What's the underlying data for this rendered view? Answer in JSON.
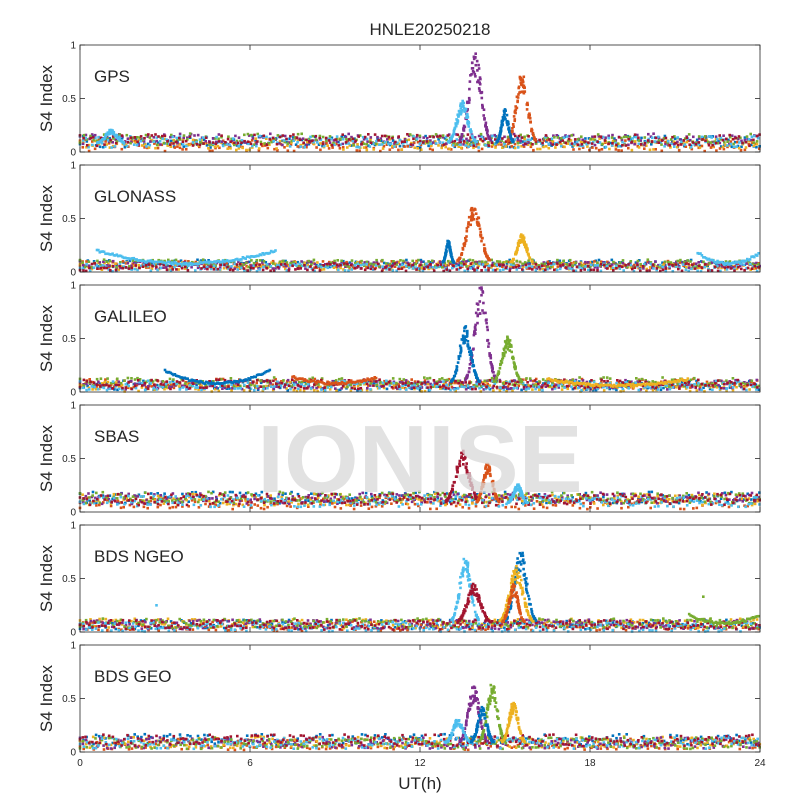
{
  "figure": {
    "title": "HNLE20250218",
    "watermark": "IONISE",
    "xlabel": "UT(h)",
    "ylabel": "S4 Index"
  },
  "series_colors": [
    "#0072BD",
    "#D95319",
    "#EDB120",
    "#7E2F8E",
    "#77AC30",
    "#4DBEEE",
    "#A2142F"
  ],
  "chart_data": [
    {
      "type": "scatter",
      "panel": "GPS",
      "label": "GPS",
      "xlim": [
        0,
        24
      ],
      "ylim": [
        0,
        1
      ],
      "xticks": [
        0,
        6,
        12,
        18,
        24
      ],
      "yticks": [
        0,
        0.5,
        1
      ],
      "xtick_labels": [
        "0",
        "6",
        "12",
        "18",
        "24"
      ],
      "ytick_labels": [
        "0",
        "0.5",
        "1"
      ],
      "baseline": [
        0.03,
        0.15
      ],
      "bumps": [
        {
          "x0": 13.4,
          "x1": 14.5,
          "peak": 0.95,
          "color": 3
        },
        {
          "x0": 13.0,
          "x1": 14.0,
          "peak": 0.48,
          "color": 5
        },
        {
          "x0": 15.1,
          "x1": 16.1,
          "peak": 0.76,
          "color": 1
        },
        {
          "x0": 14.7,
          "x1": 15.3,
          "peak": 0.4,
          "color": 0
        },
        {
          "x0": 0.6,
          "x1": 1.6,
          "peak": 0.21,
          "color": 5
        }
      ],
      "arcs": [],
      "outliers": []
    },
    {
      "type": "scatter",
      "panel": "GLONASS",
      "label": "GLONASS",
      "xlim": [
        0,
        24
      ],
      "ylim": [
        0,
        1
      ],
      "xticks": [
        0,
        6,
        12,
        18,
        24
      ],
      "yticks": [
        0,
        0.5,
        1
      ],
      "xtick_labels": [
        "0",
        "6",
        "12",
        "18",
        "24"
      ],
      "ytick_labels": [
        "0",
        "0.5",
        "1"
      ],
      "baseline": [
        0.02,
        0.1
      ],
      "bumps": [
        {
          "x0": 13.3,
          "x1": 14.5,
          "peak": 0.64,
          "color": 1
        },
        {
          "x0": 15.2,
          "x1": 16.0,
          "peak": 0.36,
          "color": 2
        },
        {
          "x0": 12.8,
          "x1": 13.2,
          "peak": 0.3,
          "color": 0
        }
      ],
      "arcs": [
        {
          "x0": 0.6,
          "x1": 6.9,
          "end": 0.2,
          "low": 0.08,
          "color": 5
        },
        {
          "x0": 21.8,
          "x1": 24.0,
          "end": 0.18,
          "low": 0.08,
          "color": 5
        }
      ],
      "outliers": []
    },
    {
      "type": "scatter",
      "panel": "GALILEO",
      "label": "GALILEO",
      "xlim": [
        0,
        24
      ],
      "ylim": [
        0,
        1
      ],
      "xticks": [
        0,
        6,
        12,
        18,
        24
      ],
      "yticks": [
        0,
        0.5,
        1
      ],
      "xtick_labels": [
        "0",
        "6",
        "12",
        "18",
        "24"
      ],
      "ytick_labels": [
        "0",
        "0.5",
        "1"
      ],
      "baseline": [
        0.02,
        0.12
      ],
      "bumps": [
        {
          "x0": 13.6,
          "x1": 14.7,
          "peak": 1.0,
          "color": 3
        },
        {
          "x0": 13.1,
          "x1": 14.1,
          "peak": 0.62,
          "color": 0
        },
        {
          "x0": 14.6,
          "x1": 15.6,
          "peak": 0.52,
          "color": 4
        }
      ],
      "arcs": [
        {
          "x0": 3.0,
          "x1": 6.7,
          "end": 0.2,
          "low": 0.08,
          "color": 0
        },
        {
          "x0": 7.5,
          "x1": 10.5,
          "end": 0.14,
          "low": 0.08,
          "color": 1
        },
        {
          "x0": 16.5,
          "x1": 21.5,
          "end": 0.12,
          "low": 0.06,
          "color": 2
        }
      ],
      "outliers": []
    },
    {
      "type": "scatter",
      "panel": "SBAS",
      "label": "SBAS",
      "xlim": [
        0,
        24
      ],
      "ylim": [
        0,
        1
      ],
      "xticks": [
        0,
        6,
        12,
        18,
        24
      ],
      "yticks": [
        0,
        0.5,
        1
      ],
      "xtick_labels": [
        "0",
        "6",
        "12",
        "18",
        "24"
      ],
      "ytick_labels": [
        "0",
        "0.5",
        "1"
      ],
      "baseline": [
        0.05,
        0.17
      ],
      "bumps": [
        {
          "x0": 12.9,
          "x1": 14.1,
          "peak": 0.58,
          "color": 6
        },
        {
          "x0": 14.0,
          "x1": 14.8,
          "peak": 0.48,
          "color": 1
        },
        {
          "x0": 15.1,
          "x1": 15.8,
          "peak": 0.26,
          "color": 5
        }
      ],
      "arcs": [],
      "outliers": []
    },
    {
      "type": "scatter",
      "panel": "BDS NGEO",
      "label": "BDS NGEO",
      "xlim": [
        0,
        24
      ],
      "ylim": [
        0,
        1
      ],
      "xticks": [
        0,
        6,
        12,
        18,
        24
      ],
      "yticks": [
        0,
        0.5,
        1
      ],
      "xtick_labels": [
        "0",
        "6",
        "12",
        "18",
        "24"
      ],
      "ytick_labels": [
        "0",
        "0.5",
        "1"
      ],
      "baseline": [
        0.02,
        0.12
      ],
      "bumps": [
        {
          "x0": 13.1,
          "x1": 14.1,
          "peak": 0.72,
          "color": 5
        },
        {
          "x0": 13.3,
          "x1": 14.5,
          "peak": 0.45,
          "color": 6
        },
        {
          "x0": 15.0,
          "x1": 16.1,
          "peak": 0.78,
          "color": 0
        },
        {
          "x0": 14.8,
          "x1": 16.0,
          "peak": 0.62,
          "color": 2
        },
        {
          "x0": 14.9,
          "x1": 15.7,
          "peak": 0.45,
          "color": 1
        }
      ],
      "arcs": [
        {
          "x0": 21.5,
          "x1": 24.0,
          "end": 0.16,
          "low": 0.08,
          "color": 4
        }
      ],
      "outliers": [
        {
          "x": 2.7,
          "y": 0.25,
          "color": 5
        },
        {
          "x": 22.0,
          "y": 0.33,
          "color": 4
        }
      ]
    },
    {
      "type": "scatter",
      "panel": "BDS GEO",
      "label": "BDS GEO",
      "xlim": [
        0,
        24
      ],
      "ylim": [
        0,
        1
      ],
      "xticks": [
        0,
        6,
        12,
        18,
        24
      ],
      "yticks": [
        0,
        0.5,
        1
      ],
      "xtick_labels": [
        "0",
        "6",
        "12",
        "18",
        "24"
      ],
      "ytick_labels": [
        "0",
        "0.5",
        "1"
      ],
      "baseline": [
        0.04,
        0.16
      ],
      "bumps": [
        {
          "x0": 13.4,
          "x1": 14.4,
          "peak": 0.62,
          "color": 3
        },
        {
          "x0": 14.1,
          "x1": 15.0,
          "peak": 0.66,
          "color": 4
        },
        {
          "x0": 12.9,
          "x1": 13.8,
          "peak": 0.32,
          "color": 5
        },
        {
          "x0": 14.9,
          "x1": 15.7,
          "peak": 0.48,
          "color": 2
        },
        {
          "x0": 13.8,
          "x1": 14.6,
          "peak": 0.42,
          "color": 0
        }
      ],
      "arcs": [],
      "outliers": []
    }
  ]
}
